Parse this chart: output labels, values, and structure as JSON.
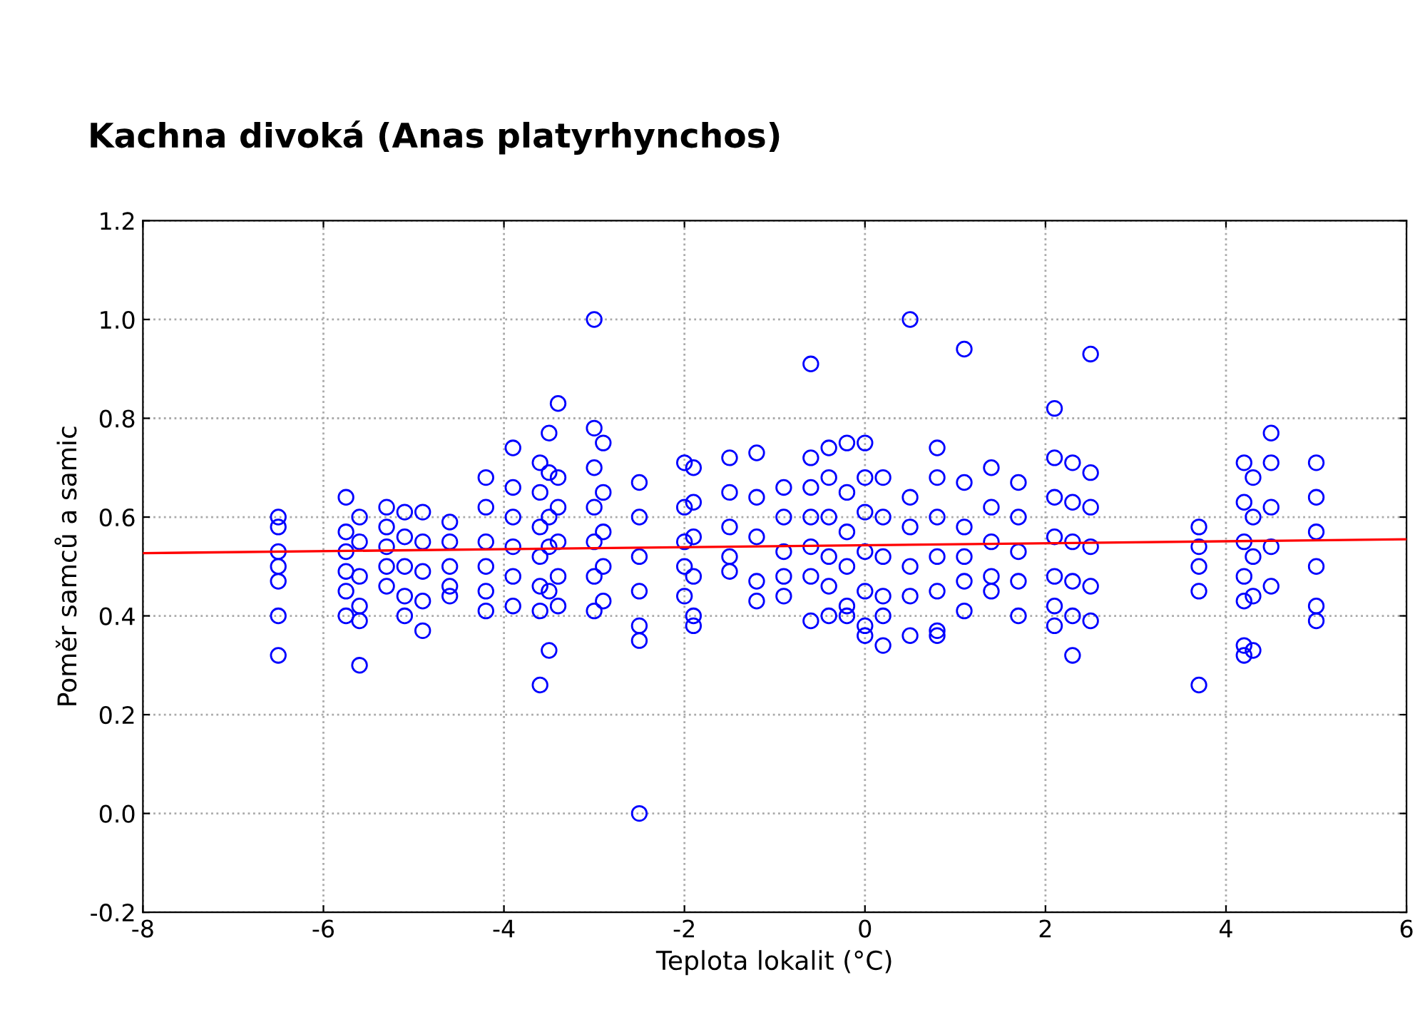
{
  "chart_data": {
    "type": "scatter",
    "title": "Kachna divoká (Anas platyrhynchos)",
    "xlabel": "Teplota lokalit (°C)",
    "ylabel": "Poměr samců a samic",
    "xlim": [
      -8,
      6
    ],
    "xticks": [
      -8,
      -6,
      -4,
      -2,
      0,
      2,
      4,
      6
    ],
    "ylim": [
      -0.2,
      1.2
    ],
    "yticks": [
      {
        "value": -0.2,
        "label": "-0.2"
      },
      {
        "value": 0,
        "label": "0.0"
      },
      {
        "value": 0.2,
        "label": "0.2"
      },
      {
        "value": 0.4,
        "label": "0.4"
      },
      {
        "value": 0.6,
        "label": "0.6"
      },
      {
        "value": 0.8,
        "label": "0.8"
      },
      {
        "value": 1.0,
        "label": "1.0"
      },
      {
        "value": 1.2,
        "label": "1.2"
      }
    ],
    "grid": true,
    "marker": "circle",
    "series": [
      {
        "color": "#0000ff",
        "x": [
          -6.5,
          -6.5,
          -6.5,
          -6.5,
          -6.5,
          -6.5,
          -6.5,
          -5.75,
          -5.75,
          -5.75,
          -5.75,
          -5.75,
          -5.75,
          -5.6,
          -5.6,
          -5.6,
          -5.6,
          -5.6,
          -5.6,
          -5.3,
          -5.3,
          -5.3,
          -5.3,
          -5.3,
          -5.1,
          -5.1,
          -5.1,
          -5.1,
          -5.1,
          -4.9,
          -4.9,
          -4.9,
          -4.9,
          -4.9,
          -4.6,
          -4.6,
          -4.6,
          -4.6,
          -4.6,
          -4.2,
          -4.2,
          -4.2,
          -4.2,
          -4.2,
          -4.2,
          -3.9,
          -3.9,
          -3.9,
          -3.9,
          -3.9,
          -3.9,
          -3.6,
          -3.6,
          -3.6,
          -3.6,
          -3.6,
          -3.6,
          -3.6,
          -3.5,
          -3.5,
          -3.5,
          -3.5,
          -3.5,
          -3.5,
          -3.4,
          -3.4,
          -3.4,
          -3.4,
          -3.4,
          -3.4,
          -3.0,
          -3.0,
          -3.0,
          -3.0,
          -3.0,
          -3.0,
          -3.0,
          -2.9,
          -2.9,
          -2.9,
          -2.9,
          -2.9,
          -2.5,
          -2.5,
          -2.5,
          -2.5,
          -2.5,
          -2.5,
          -2.5,
          -2.0,
          -2.0,
          -2.0,
          -2.0,
          -2.0,
          -1.9,
          -1.9,
          -1.9,
          -1.9,
          -1.9,
          -1.9,
          -1.5,
          -1.5,
          -1.5,
          -1.5,
          -1.5,
          -1.2,
          -1.2,
          -1.2,
          -1.2,
          -1.2,
          -0.9,
          -0.9,
          -0.9,
          -0.9,
          -0.9,
          -0.6,
          -0.6,
          -0.6,
          -0.6,
          -0.6,
          -0.6,
          -0.6,
          -0.4,
          -0.4,
          -0.4,
          -0.4,
          -0.4,
          -0.4,
          -0.2,
          -0.2,
          -0.2,
          -0.2,
          -0.2,
          -0.2,
          0.0,
          0.0,
          0.0,
          0.0,
          0.0,
          0.0,
          0.0,
          0.2,
          0.2,
          0.2,
          0.2,
          0.2,
          0.2,
          0.5,
          0.5,
          0.5,
          0.5,
          0.5,
          0.5,
          0.8,
          0.8,
          0.8,
          0.8,
          0.8,
          0.8,
          0.8,
          1.1,
          1.1,
          1.1,
          1.1,
          1.1,
          1.1,
          1.4,
          1.4,
          1.4,
          1.4,
          1.4,
          1.7,
          1.7,
          1.7,
          1.7,
          1.7,
          2.1,
          2.1,
          2.1,
          2.1,
          2.1,
          2.1,
          2.1,
          2.3,
          2.3,
          2.3,
          2.3,
          2.3,
          2.3,
          2.5,
          2.5,
          2.5,
          2.5,
          2.5,
          2.5,
          3.7,
          3.7,
          3.7,
          3.7,
          3.7,
          4.2,
          4.2,
          4.2,
          4.2,
          4.2,
          4.2,
          4.2,
          4.3,
          4.3,
          4.3,
          4.3,
          4.3,
          4.5,
          4.5,
          4.5,
          4.5,
          4.5,
          5.0,
          5.0,
          5.0,
          5.0,
          5.0,
          5.0
        ],
        "values": [
          0.6,
          0.58,
          0.53,
          0.5,
          0.47,
          0.4,
          0.32,
          0.64,
          0.57,
          0.53,
          0.49,
          0.45,
          0.4,
          0.6,
          0.55,
          0.48,
          0.42,
          0.39,
          0.3,
          0.62,
          0.58,
          0.54,
          0.5,
          0.46,
          0.61,
          0.56,
          0.5,
          0.44,
          0.4,
          0.61,
          0.55,
          0.49,
          0.43,
          0.37,
          0.59,
          0.55,
          0.5,
          0.46,
          0.44,
          0.68,
          0.62,
          0.55,
          0.5,
          0.45,
          0.41,
          0.74,
          0.66,
          0.6,
          0.54,
          0.48,
          0.42,
          0.71,
          0.65,
          0.58,
          0.52,
          0.46,
          0.41,
          0.26,
          0.77,
          0.69,
          0.6,
          0.54,
          0.45,
          0.33,
          0.83,
          0.68,
          0.62,
          0.55,
          0.48,
          0.42,
          1.0,
          0.78,
          0.7,
          0.62,
          0.55,
          0.48,
          0.41,
          0.75,
          0.65,
          0.57,
          0.5,
          0.43,
          0.67,
          0.6,
          0.52,
          0.45,
          0.38,
          0.35,
          0.0,
          0.71,
          0.62,
          0.55,
          0.5,
          0.44,
          0.7,
          0.63,
          0.56,
          0.48,
          0.4,
          0.38,
          0.72,
          0.65,
          0.58,
          0.52,
          0.49,
          0.73,
          0.64,
          0.56,
          0.47,
          0.43,
          0.66,
          0.6,
          0.53,
          0.48,
          0.44,
          0.91,
          0.72,
          0.66,
          0.6,
          0.54,
          0.48,
          0.39,
          0.74,
          0.68,
          0.6,
          0.52,
          0.46,
          0.4,
          0.75,
          0.65,
          0.57,
          0.5,
          0.42,
          0.4,
          0.75,
          0.68,
          0.61,
          0.53,
          0.45,
          0.38,
          0.36,
          0.68,
          0.6,
          0.52,
          0.44,
          0.4,
          0.34,
          1.0,
          0.64,
          0.58,
          0.5,
          0.44,
          0.36,
          0.74,
          0.68,
          0.6,
          0.52,
          0.45,
          0.37,
          0.36,
          0.94,
          0.67,
          0.58,
          0.52,
          0.47,
          0.41,
          0.7,
          0.62,
          0.55,
          0.48,
          0.45,
          0.67,
          0.6,
          0.53,
          0.47,
          0.4,
          0.82,
          0.72,
          0.64,
          0.56,
          0.48,
          0.42,
          0.38,
          0.71,
          0.63,
          0.55,
          0.47,
          0.4,
          0.32,
          0.93,
          0.69,
          0.62,
          0.54,
          0.46,
          0.39,
          0.58,
          0.54,
          0.5,
          0.45,
          0.26,
          0.71,
          0.63,
          0.55,
          0.48,
          0.43,
          0.34,
          0.32,
          0.68,
          0.6,
          0.52,
          0.44,
          0.33,
          0.77,
          0.71,
          0.62,
          0.54,
          0.46,
          0.71,
          0.64,
          0.57,
          0.5,
          0.42,
          0.39
        ]
      },
      {
        "type": "line",
        "color": "#ff0000",
        "marker": "none",
        "line_style": "solid",
        "x": [
          -8,
          6
        ],
        "values": [
          0.527,
          0.555
        ]
      }
    ]
  }
}
